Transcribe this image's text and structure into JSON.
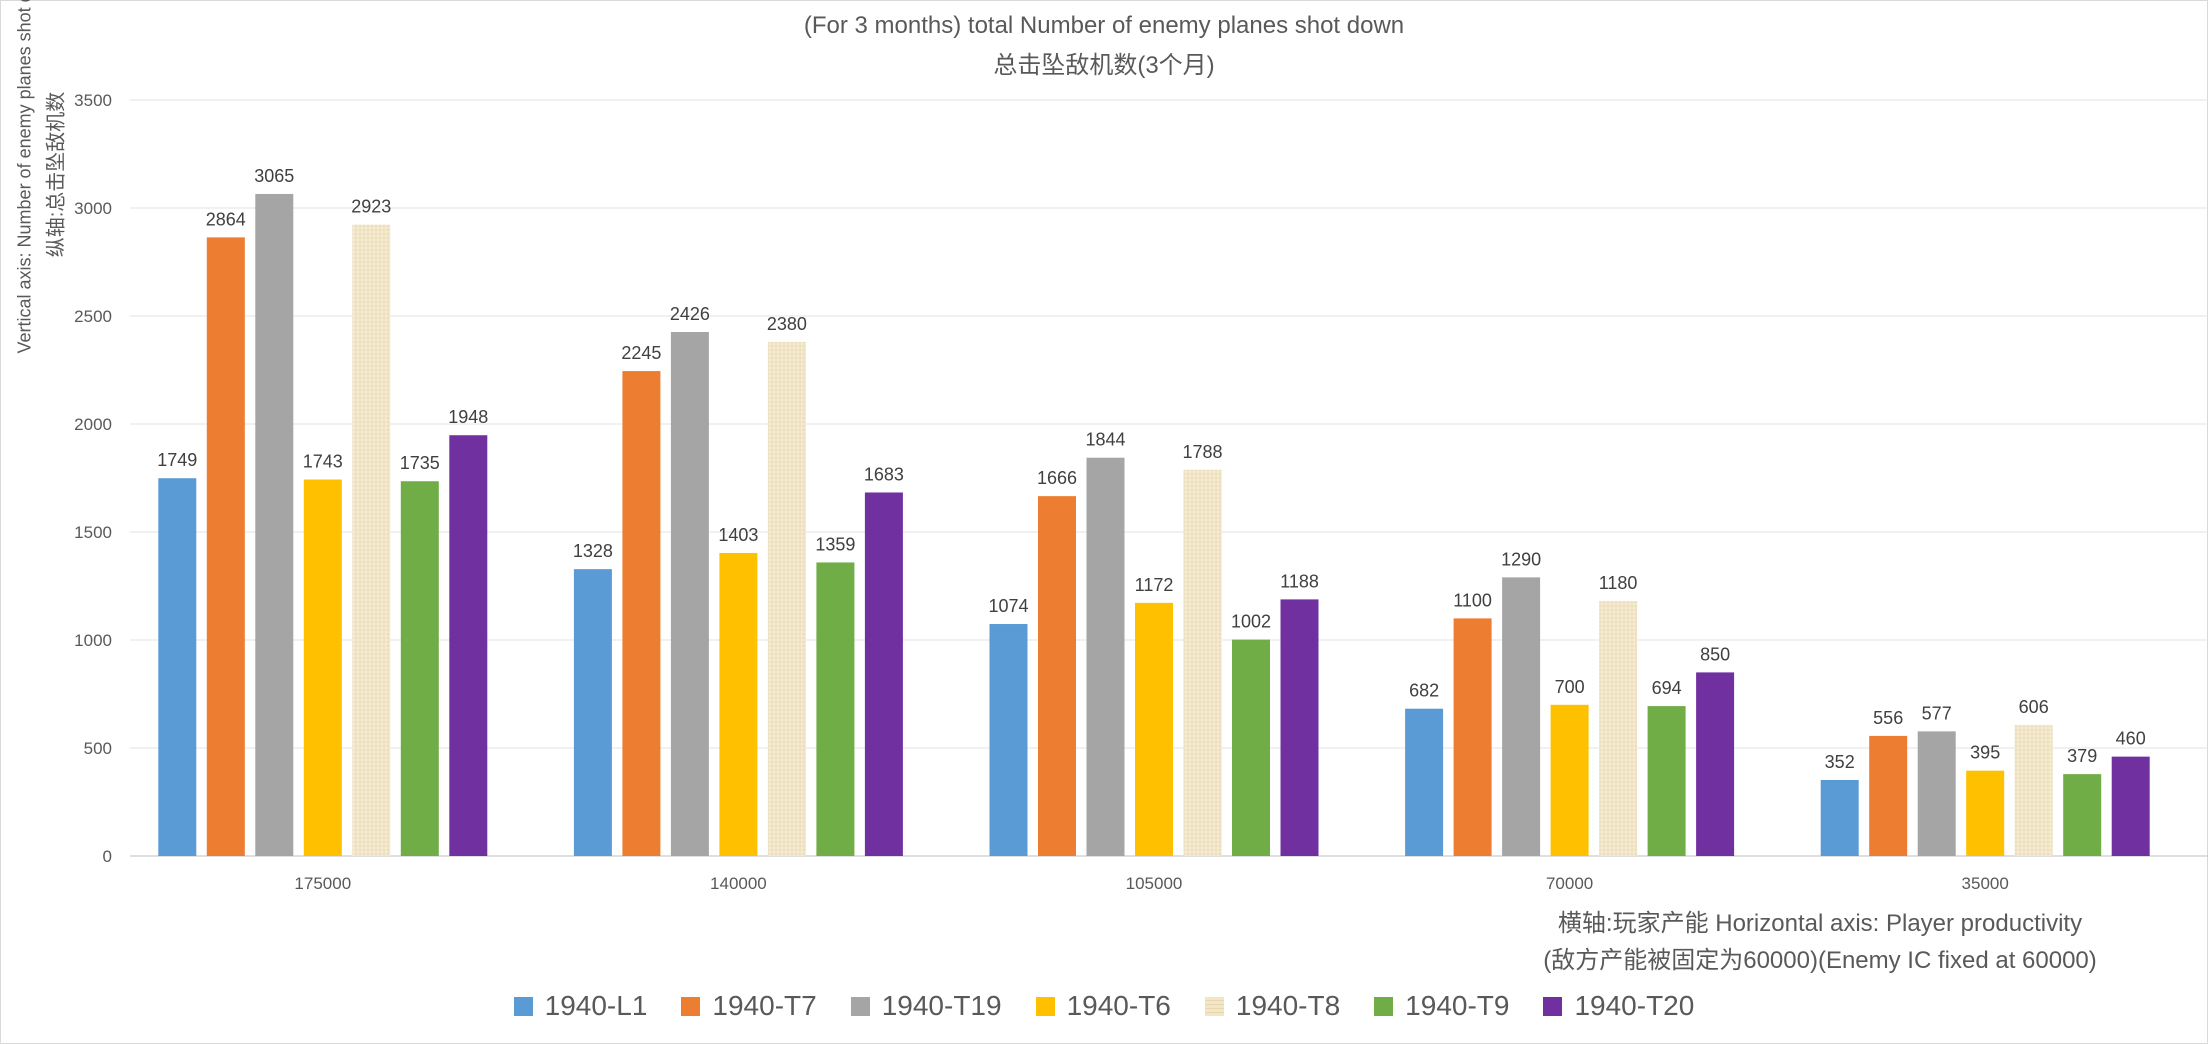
{
  "chart_data": {
    "type": "bar",
    "title": "(For 3 months) total Number of enemy planes shot down",
    "subtitle": "总击坠敌机数(3个月)",
    "ylabel_line1": "Vertical axis:  Number of enemy planes shot down",
    "ylabel_line2": "纵轴:总击坠敌机数",
    "xlabel_line1": "横轴:玩家产能 Horizontal axis: Player productivity",
    "xlabel_line2": "(敌方产能被固定为60000)(Enemy IC fixed at 60000)",
    "categories": [
      "175000",
      "140000",
      "105000",
      "70000",
      "35000"
    ],
    "ylim": [
      0,
      3500
    ],
    "yticks": [
      0,
      500,
      1000,
      1500,
      2000,
      2500,
      3000,
      3500
    ],
    "grid": true,
    "legend_position": "bottom",
    "series": [
      {
        "name": "1940-L1",
        "color": "#5b9bd5",
        "values": [
          1749,
          1328,
          1074,
          682,
          352
        ]
      },
      {
        "name": "1940-T7",
        "color": "#ed7d31",
        "values": [
          2864,
          2245,
          1666,
          1100,
          556
        ]
      },
      {
        "name": "1940-T19",
        "color": "#a5a5a5",
        "values": [
          3065,
          2426,
          1844,
          1290,
          577
        ]
      },
      {
        "name": "1940-T6",
        "color": "#ffc000",
        "values": [
          1743,
          1403,
          1172,
          700,
          395
        ]
      },
      {
        "name": "1940-T8",
        "color": "#f2e6c9",
        "pattern": "textured",
        "values": [
          2923,
          2380,
          1788,
          1180,
          606
        ]
      },
      {
        "name": "1940-T9",
        "color": "#70ad47",
        "values": [
          1735,
          1359,
          1002,
          694,
          379
        ]
      },
      {
        "name": "1940-T20",
        "color": "#7030a0",
        "values": [
          1948,
          1683,
          1188,
          850,
          460
        ]
      }
    ]
  }
}
